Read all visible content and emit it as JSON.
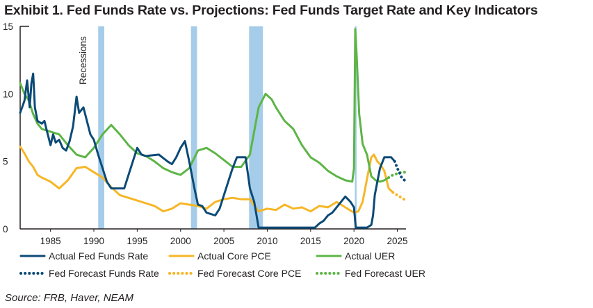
{
  "title": "Exhibit 1. Fed Funds Rate vs. Projections: Fed Funds Target Rate and Key Indicators",
  "source": "Source: FRB, Haver, NEAM",
  "colors": {
    "fed_funds": "#0b4a76",
    "core_pce": "#f6b626",
    "uer": "#5db546",
    "recession": "#a5cdea",
    "recession_label": "#a5cdea",
    "axis": "#231f20"
  },
  "chart_data": {
    "type": "line",
    "title": "Fed Funds Rate vs. Projections: Fed Funds Target Rate and Key Indicators",
    "xlabel": "",
    "ylabel": "",
    "xlim": [
      1981.5,
      2026
    ],
    "ylim": [
      0,
      15
    ],
    "x_ticks": [
      1985,
      1990,
      1995,
      2000,
      2005,
      2010,
      2015,
      2020,
      2025
    ],
    "y_ticks": [
      0,
      5,
      10,
      15
    ],
    "recession_label": "Recessions",
    "recessions": [
      [
        1990.5,
        1991.2
      ],
      [
        2001.2,
        2001.9
      ],
      [
        2007.9,
        2009.5
      ],
      [
        2020.1,
        2020.3
      ]
    ],
    "series": [
      {
        "name": "Actual Fed Funds Rate",
        "style": "solid",
        "color_key": "fed_funds",
        "points": [
          [
            1981.5,
            8.6
          ],
          [
            1982.0,
            9.5
          ],
          [
            1982.3,
            11.0
          ],
          [
            1982.6,
            9.0
          ],
          [
            1982.8,
            10.8
          ],
          [
            1983.0,
            11.5
          ],
          [
            1983.2,
            9.0
          ],
          [
            1983.5,
            8.0
          ],
          [
            1984.0,
            7.8
          ],
          [
            1984.3,
            8.0
          ],
          [
            1984.6,
            7.2
          ],
          [
            1985.0,
            6.2
          ],
          [
            1985.3,
            7.0
          ],
          [
            1985.6,
            6.4
          ],
          [
            1986.0,
            6.6
          ],
          [
            1986.4,
            6.0
          ],
          [
            1986.8,
            5.8
          ],
          [
            1987.2,
            6.5
          ],
          [
            1987.6,
            7.6
          ],
          [
            1988.0,
            9.8
          ],
          [
            1988.3,
            8.6
          ],
          [
            1988.8,
            9.0
          ],
          [
            1989.2,
            8.0
          ],
          [
            1989.6,
            7.0
          ],
          [
            1990.0,
            6.6
          ],
          [
            1990.5,
            5.5
          ],
          [
            1991.0,
            4.5
          ],
          [
            1991.5,
            3.5
          ],
          [
            1992.0,
            3.0
          ],
          [
            1993.5,
            3.0
          ],
          [
            1994.0,
            4.0
          ],
          [
            1994.5,
            5.0
          ],
          [
            1995.0,
            6.0
          ],
          [
            1995.5,
            5.5
          ],
          [
            1996.0,
            5.4
          ],
          [
            1997.5,
            5.5
          ],
          [
            1998.5,
            5.0
          ],
          [
            1999.0,
            4.8
          ],
          [
            1999.5,
            5.3
          ],
          [
            2000.0,
            6.0
          ],
          [
            2000.5,
            6.5
          ],
          [
            2001.0,
            5.0
          ],
          [
            2001.3,
            4.0
          ],
          [
            2001.6,
            3.0
          ],
          [
            2002.0,
            1.8
          ],
          [
            2002.5,
            1.7
          ],
          [
            2003.0,
            1.2
          ],
          [
            2004.0,
            1.0
          ],
          [
            2004.5,
            1.5
          ],
          [
            2005.0,
            2.5
          ],
          [
            2005.5,
            3.5
          ],
          [
            2006.0,
            4.5
          ],
          [
            2006.5,
            5.3
          ],
          [
            2007.5,
            5.3
          ],
          [
            2008.0,
            3.0
          ],
          [
            2008.5,
            2.0
          ],
          [
            2009.0,
            0.1
          ],
          [
            2015.5,
            0.1
          ],
          [
            2016.0,
            0.4
          ],
          [
            2016.5,
            0.6
          ],
          [
            2017.0,
            1.0
          ],
          [
            2017.5,
            1.2
          ],
          [
            2018.0,
            1.6
          ],
          [
            2018.5,
            2.0
          ],
          [
            2019.0,
            2.4
          ],
          [
            2019.6,
            2.0
          ],
          [
            2020.0,
            1.6
          ],
          [
            2020.2,
            0.1
          ],
          [
            2021.5,
            0.1
          ],
          [
            2022.0,
            0.3
          ],
          [
            2022.2,
            1.0
          ],
          [
            2022.4,
            2.5
          ],
          [
            2022.7,
            3.5
          ],
          [
            2023.0,
            4.5
          ],
          [
            2023.5,
            5.3
          ],
          [
            2024.3,
            5.3
          ],
          [
            2024.7,
            5.0
          ]
        ]
      },
      {
        "name": "Actual Core PCE",
        "style": "solid",
        "color_key": "core_pce",
        "points": [
          [
            1981.5,
            6.1
          ],
          [
            1982.0,
            5.6
          ],
          [
            1982.5,
            5.0
          ],
          [
            1983.0,
            4.6
          ],
          [
            1983.5,
            4.0
          ],
          [
            1984.0,
            3.8
          ],
          [
            1985.0,
            3.5
          ],
          [
            1986.0,
            3.0
          ],
          [
            1987.0,
            3.6
          ],
          [
            1988.0,
            4.5
          ],
          [
            1989.0,
            4.6
          ],
          [
            1990.0,
            4.2
          ],
          [
            1991.0,
            3.8
          ],
          [
            1992.0,
            3.1
          ],
          [
            1993.0,
            2.5
          ],
          [
            1994.0,
            2.3
          ],
          [
            1995.0,
            2.1
          ],
          [
            1996.0,
            1.9
          ],
          [
            1997.0,
            1.7
          ],
          [
            1998.0,
            1.3
          ],
          [
            1999.0,
            1.5
          ],
          [
            2000.0,
            1.9
          ],
          [
            2001.0,
            1.8
          ],
          [
            2002.0,
            1.7
          ],
          [
            2003.0,
            1.5
          ],
          [
            2004.0,
            2.0
          ],
          [
            2005.0,
            2.2
          ],
          [
            2006.0,
            2.3
          ],
          [
            2007.0,
            2.2
          ],
          [
            2008.0,
            2.2
          ],
          [
            2009.0,
            1.3
          ],
          [
            2010.0,
            1.5
          ],
          [
            2011.0,
            1.4
          ],
          [
            2012.0,
            1.8
          ],
          [
            2013.0,
            1.5
          ],
          [
            2014.0,
            1.6
          ],
          [
            2015.0,
            1.3
          ],
          [
            2016.0,
            1.7
          ],
          [
            2017.0,
            1.6
          ],
          [
            2018.0,
            2.0
          ],
          [
            2019.0,
            1.6
          ],
          [
            2020.0,
            1.2
          ],
          [
            2020.5,
            1.3
          ],
          [
            2021.0,
            2.0
          ],
          [
            2021.5,
            3.7
          ],
          [
            2022.0,
            5.3
          ],
          [
            2022.3,
            5.5
          ],
          [
            2022.7,
            5.0
          ],
          [
            2023.0,
            4.8
          ],
          [
            2023.5,
            4.3
          ],
          [
            2024.0,
            3.0
          ],
          [
            2024.5,
            2.7
          ]
        ]
      },
      {
        "name": "Actual UER",
        "style": "solid",
        "color_key": "uer",
        "points": [
          [
            1981.5,
            10.8
          ],
          [
            1982.0,
            10.0
          ],
          [
            1982.5,
            9.5
          ],
          [
            1983.0,
            8.5
          ],
          [
            1983.5,
            7.8
          ],
          [
            1984.0,
            7.4
          ],
          [
            1985.0,
            7.2
          ],
          [
            1986.0,
            7.0
          ],
          [
            1987.0,
            6.2
          ],
          [
            1988.0,
            5.5
          ],
          [
            1989.0,
            5.3
          ],
          [
            1990.0,
            6.0
          ],
          [
            1991.0,
            7.0
          ],
          [
            1992.0,
            7.7
          ],
          [
            1993.0,
            7.0
          ],
          [
            1994.0,
            6.2
          ],
          [
            1995.0,
            5.6
          ],
          [
            1996.0,
            5.4
          ],
          [
            1997.0,
            5.0
          ],
          [
            1998.0,
            4.5
          ],
          [
            1999.0,
            4.2
          ],
          [
            2000.0,
            4.0
          ],
          [
            2001.0,
            4.5
          ],
          [
            2002.0,
            5.8
          ],
          [
            2003.0,
            6.0
          ],
          [
            2004.0,
            5.6
          ],
          [
            2005.0,
            5.1
          ],
          [
            2006.0,
            4.6
          ],
          [
            2007.0,
            4.6
          ],
          [
            2008.0,
            5.5
          ],
          [
            2009.0,
            9.0
          ],
          [
            2009.8,
            10.0
          ],
          [
            2010.5,
            9.6
          ],
          [
            2011.0,
            9.0
          ],
          [
            2012.0,
            8.0
          ],
          [
            2013.0,
            7.4
          ],
          [
            2014.0,
            6.2
          ],
          [
            2015.0,
            5.3
          ],
          [
            2016.0,
            4.9
          ],
          [
            2017.0,
            4.3
          ],
          [
            2018.0,
            3.9
          ],
          [
            2019.0,
            3.6
          ],
          [
            2019.8,
            3.5
          ],
          [
            2020.0,
            4.5
          ],
          [
            2020.15,
            14.8
          ],
          [
            2020.3,
            13.0
          ],
          [
            2020.6,
            8.5
          ],
          [
            2021.0,
            6.3
          ],
          [
            2021.5,
            5.5
          ],
          [
            2022.0,
            3.9
          ],
          [
            2022.5,
            3.6
          ],
          [
            2023.0,
            3.5
          ],
          [
            2023.5,
            3.6
          ],
          [
            2024.0,
            3.8
          ]
        ]
      },
      {
        "name": "Fed Forecast Funds Rate",
        "style": "dashed",
        "color_key": "fed_funds",
        "points": [
          [
            2024.7,
            5.0
          ],
          [
            2025.0,
            4.5
          ],
          [
            2025.5,
            3.8
          ],
          [
            2026.0,
            3.5
          ]
        ]
      },
      {
        "name": "Fed Forecast Core PCE",
        "style": "dashed",
        "color_key": "core_pce",
        "points": [
          [
            2024.5,
            2.7
          ],
          [
            2025.0,
            2.5
          ],
          [
            2025.5,
            2.3
          ],
          [
            2026.0,
            2.1
          ]
        ]
      },
      {
        "name": "Fed Forecast UER",
        "style": "dashed",
        "color_key": "uer",
        "points": [
          [
            2024.0,
            3.8
          ],
          [
            2024.5,
            4.0
          ],
          [
            2025.0,
            4.1
          ],
          [
            2025.5,
            4.2
          ],
          [
            2026.0,
            4.2
          ]
        ]
      }
    ],
    "legend": {
      "placement": "bottom",
      "rows": [
        [
          "Actual Fed Funds Rate",
          "Actual Core PCE",
          "Actual UER"
        ],
        [
          "Fed Forecast Funds Rate",
          "Fed Forecast Core PCE",
          "Fed Forecast UER"
        ]
      ]
    }
  }
}
